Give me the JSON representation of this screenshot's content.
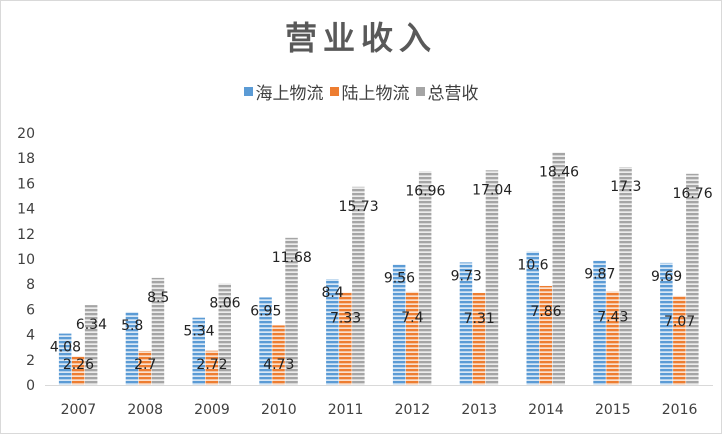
{
  "chart_data": {
    "type": "bar",
    "title": "营业收入",
    "categories": [
      "2007",
      "2008",
      "2009",
      "2010",
      "2011",
      "2012",
      "2013",
      "2014",
      "2015",
      "2016"
    ],
    "series": [
      {
        "name": "海上物流",
        "values": [
          4.08,
          5.8,
          5.34,
          6.95,
          8.4,
          9.56,
          9.73,
          10.6,
          9.87,
          9.69
        ],
        "color": "#5b9bd5"
      },
      {
        "name": "陆上物流",
        "values": [
          2.26,
          2.7,
          2.72,
          4.73,
          7.33,
          7.4,
          7.31,
          7.86,
          7.43,
          7.07
        ],
        "color": "#ed7d31"
      },
      {
        "name": "总营收",
        "values": [
          6.34,
          8.5,
          8.06,
          11.68,
          15.73,
          16.96,
          17.04,
          18.46,
          17.3,
          16.76
        ],
        "color": "#a5a5a5"
      }
    ],
    "ylim": [
      0,
      20
    ],
    "yticks": [
      0,
      2,
      4,
      6,
      8,
      10,
      12,
      14,
      16,
      18,
      20
    ],
    "data_labels": [
      [
        "4.08",
        "5.8",
        "5.34",
        "6.95",
        "8.4",
        "9.56",
        "9.73",
        "10.6",
        "9.87",
        "9.69"
      ],
      [
        "2.26",
        "2.7",
        "2.72",
        "4.73",
        "7.33",
        "7.4",
        "7.31",
        "7.86",
        "7.43",
        "7.07"
      ],
      [
        "6.34",
        "8.5",
        "8.06",
        "11.68",
        "15.73",
        "16.96",
        "17.04",
        "18.46",
        "17.3",
        "16.76"
      ]
    ],
    "grid": false,
    "legend_position": "top"
  }
}
